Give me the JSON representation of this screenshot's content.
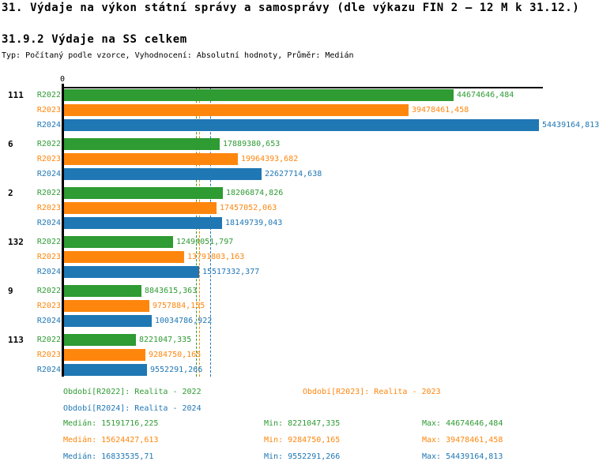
{
  "header": {
    "title": "31. Výdaje na výkon státní správy a samosprávy (dle výkazu FIN 2 – 12 M k 31.12.)",
    "subtitle": "31.9.2 Výdaje na SS celkem",
    "meta": "Typ: Počítaný podle vzorce, Vyhodnocení: Absolutní hodnoty, Průměr: Medián"
  },
  "chart_data": {
    "type": "bar",
    "orientation": "horizontal",
    "value_axis": {
      "origin_label": "0",
      "max": 54439164.813
    },
    "grid": "off",
    "categories": [
      "111",
      "6",
      "2",
      "132",
      "9",
      "113"
    ],
    "series": [
      {
        "name": "R2022",
        "color": "#2E9B33",
        "values": [
          44674646.484,
          17889380.653,
          18206874.826,
          12494051.797,
          8843615.363,
          8221047.335
        ],
        "value_labels": [
          "44674646,484",
          "17889380,653",
          "18206874,826",
          "12494051,797",
          "8843615,363",
          "8221047,335"
        ],
        "median": 15191716.225
      },
      {
        "name": "R2023",
        "color": "#FF860D",
        "values": [
          39478461.458,
          19964393.682,
          17457052.063,
          13791803.163,
          9757884.155,
          9284750.165
        ],
        "value_labels": [
          "39478461,458",
          "19964393,682",
          "17457052,063",
          "13791803,163",
          "9757884,155",
          "9284750,165"
        ],
        "median": 15624427.613
      },
      {
        "name": "R2024",
        "color": "#1F77B4",
        "values": [
          54439164.813,
          22627714.638,
          18149739.043,
          15517332.377,
          10034786.922,
          9552291.266
        ],
        "value_labels": [
          "54439164,813",
          "22627714,638",
          "18149739,043",
          "15517332,377",
          "10034786,922",
          "9552291,266"
        ],
        "median": 16833535.71
      }
    ]
  },
  "legend": {
    "items": [
      {
        "id": "r2022",
        "color": "#2E9B33",
        "text": "Období[R2022]: Realita - 2022"
      },
      {
        "id": "r2023",
        "color": "#FF860D",
        "text": "Období[R2023]: Realita - 2023"
      },
      {
        "id": "r2024",
        "color": "#1F77B4",
        "text": "Období[R2024]: Realita - 2024"
      }
    ]
  },
  "stats": {
    "rows": [
      {
        "id": "r2022",
        "color": "#2E9B33",
        "median": "Medián: 15191716,225",
        "min": "Min: 8221047,335",
        "max": "Max: 44674646,484"
      },
      {
        "id": "r2023",
        "color": "#FF860D",
        "median": "Medián: 15624427,613",
        "min": "Min: 9284750,165",
        "max": "Max: 39478461,458"
      },
      {
        "id": "r2024",
        "color": "#1F77B4",
        "median": "Medián: 16833535,71",
        "min": "Min: 9552291,266",
        "max": "Max: 54439164,813"
      }
    ]
  }
}
